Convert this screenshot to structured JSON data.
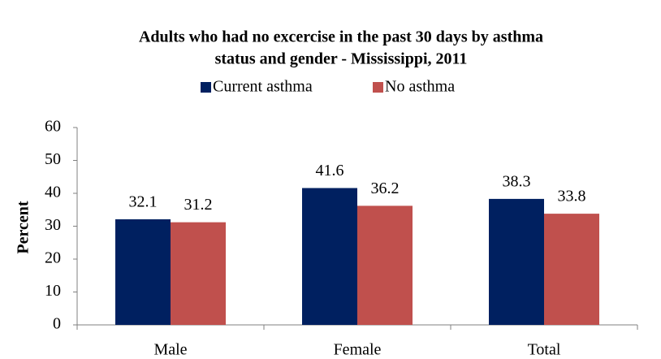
{
  "chart_data": {
    "type": "bar",
    "title_lines": [
      "Adults who had no excercise in the past 30 days by asthma",
      "status and gender - Mississippi, 2011"
    ],
    "y_label": "Percent",
    "categories": [
      "Male",
      "Female",
      "Total"
    ],
    "series": [
      {
        "name": "Current asthma",
        "color": "#002060",
        "values": [
          32.1,
          41.6,
          38.3
        ]
      },
      {
        "name": "No asthma",
        "color": "#c0504d",
        "values": [
          31.2,
          36.2,
          33.8
        ]
      }
    ],
    "ylim": [
      0,
      60
    ],
    "yticks": [
      0,
      10,
      20,
      30,
      40,
      50,
      60
    ],
    "legend": "top"
  }
}
